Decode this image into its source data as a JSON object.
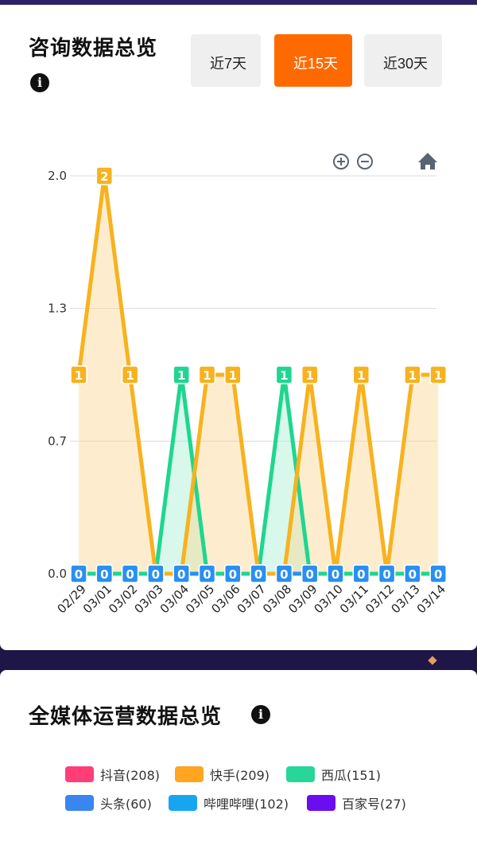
{
  "consult": {
    "title": "咨询数据总览",
    "buttons": [
      "近7天",
      "近15天",
      "近30天"
    ],
    "active_index": 1
  },
  "chart_data": {
    "type": "line",
    "categories": [
      "02/29",
      "03/01",
      "03/02",
      "03/03",
      "03/04",
      "03/05",
      "03/06",
      "03/07",
      "03/08",
      "03/09",
      "03/10",
      "03/11",
      "03/12",
      "03/13",
      "03/14"
    ],
    "y_ticks": [
      "0.0",
      "0.7",
      "1.3",
      "2.0"
    ],
    "ylim": [
      0,
      2
    ],
    "series": [
      {
        "color": "#f7b21e",
        "fill": "#fbd893",
        "values": [
          1,
          2,
          1,
          0,
          0,
          1,
          1,
          0,
          0,
          1,
          0,
          1,
          0,
          1,
          1
        ]
      },
      {
        "color": "#1fd68f",
        "fill": "#a6efd3",
        "values": [
          0,
          0,
          0,
          0,
          1,
          0,
          0,
          0,
          1,
          0,
          0,
          0,
          0,
          0,
          0
        ]
      },
      {
        "color": "#2a8ff0",
        "fill": "#9ccaf5",
        "values": [
          0,
          0,
          0,
          0,
          0,
          0,
          0,
          0,
          0,
          0,
          0,
          0,
          0,
          0,
          0
        ]
      }
    ],
    "toolbar_icons": [
      "zoom-in-icon",
      "zoom-out-icon",
      "home-icon"
    ],
    "grid": true
  },
  "media": {
    "title": "全媒体运营数据总览",
    "legend": [
      {
        "label": "抖音(208)",
        "color": "#ff3d77"
      },
      {
        "label": "快手(209)",
        "color": "#ffa51f"
      },
      {
        "label": "西瓜(151)",
        "color": "#28d69a"
      },
      {
        "label": "头条(60)",
        "color": "#3a86f0"
      },
      {
        "label": "哔哩哔哩(102)",
        "color": "#17a5f2"
      },
      {
        "label": "百家号(27)",
        "color": "#6a0df0"
      }
    ]
  }
}
